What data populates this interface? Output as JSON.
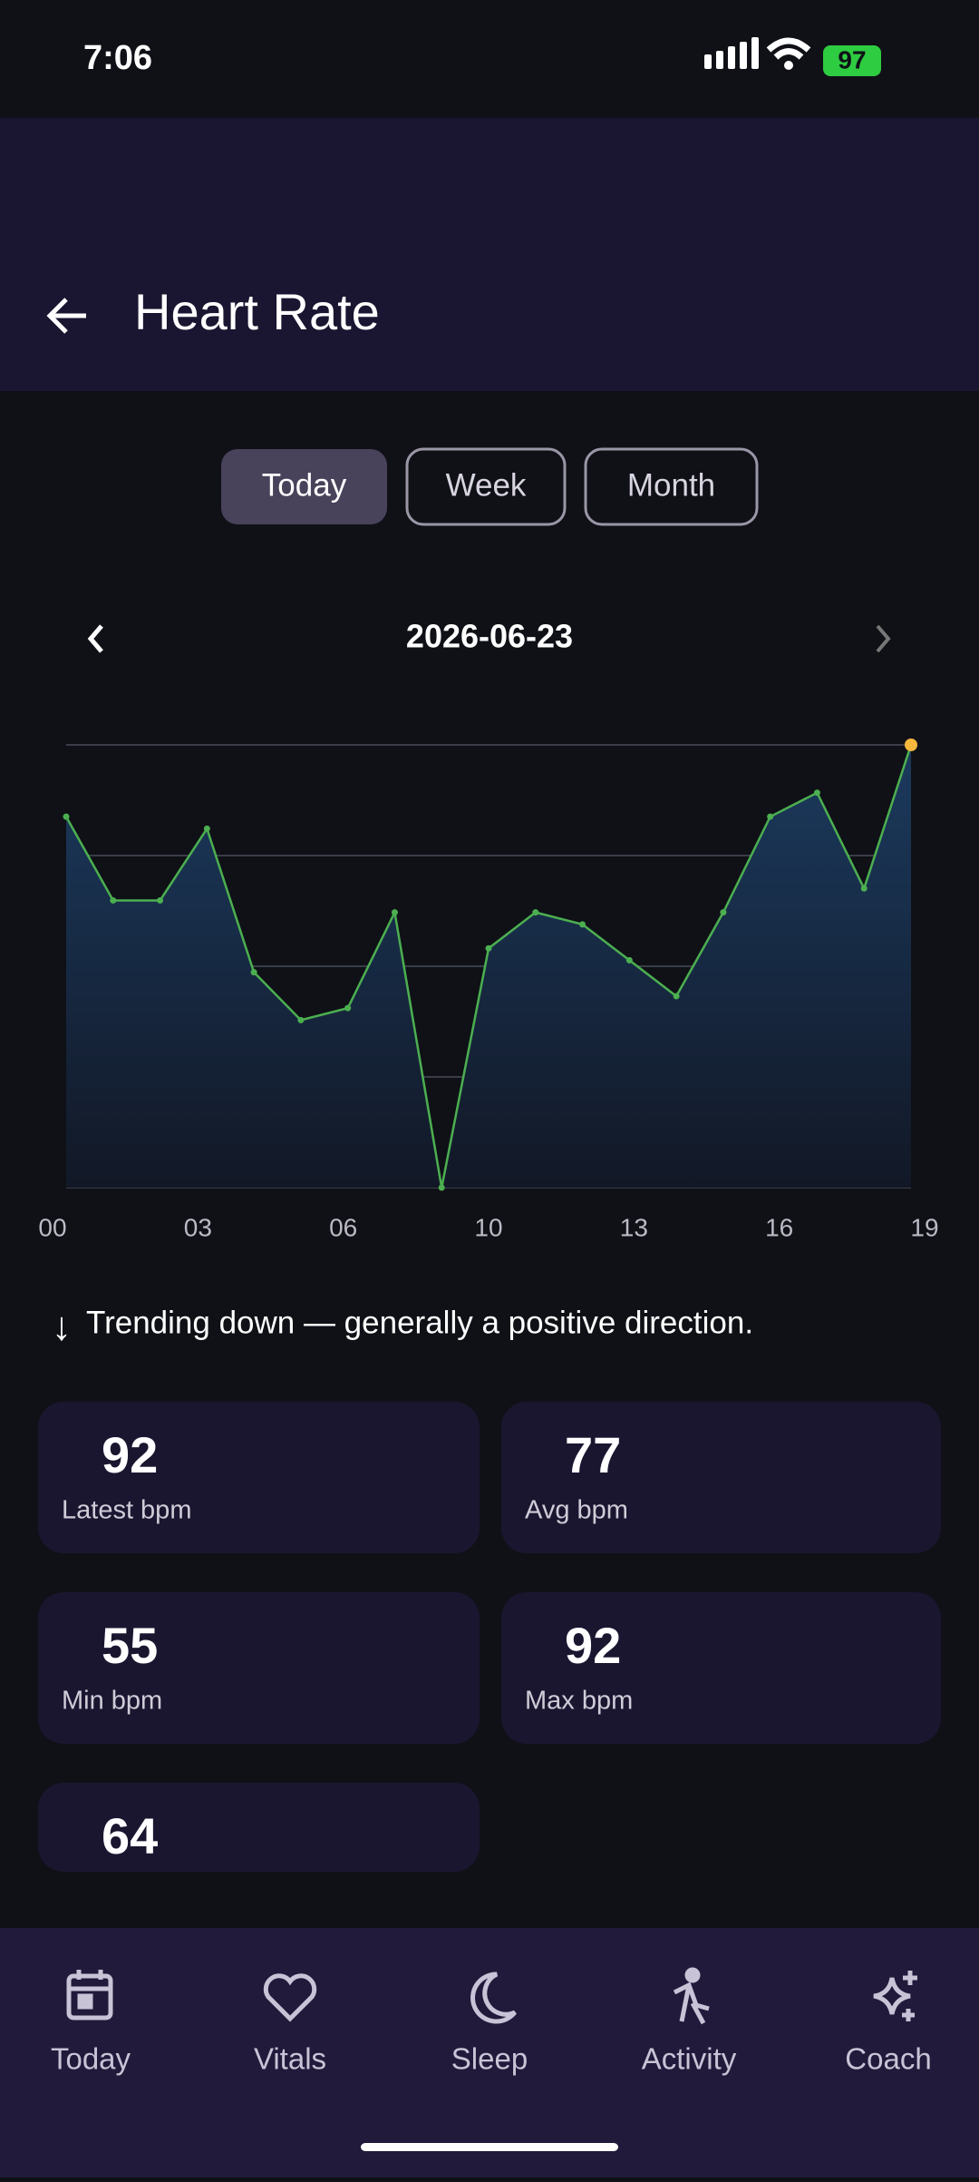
{
  "status_bar": {
    "time": "7:06",
    "battery": "97"
  },
  "header": {
    "title": "Heart Rate"
  },
  "tabs": {
    "items": [
      "Today",
      "Week",
      "Month"
    ],
    "selected": 0
  },
  "date": "2026-06-23",
  "chart_data": {
    "type": "line",
    "x_labels": [
      "00",
      "03",
      "06",
      "10",
      "13",
      "16",
      "19"
    ],
    "values": [
      86,
      79,
      79,
      85,
      73,
      69,
      70,
      78,
      55,
      75,
      78,
      77,
      74,
      71,
      78,
      86,
      88,
      80,
      92
    ],
    "color": "#4caf50",
    "last_point_color": "#f5b83d",
    "ylim": [
      55,
      92
    ],
    "yticks": [
      55,
      64.25,
      73.5,
      82.75,
      92
    ],
    "grid": true
  },
  "trend": {
    "icon": "↓",
    "text": "Trending down — generally a positive direction."
  },
  "stats": [
    {
      "value": 92,
      "label": "Latest bpm"
    },
    {
      "value": 77,
      "label": "Avg bpm"
    },
    {
      "value": 55,
      "label": "Min bpm"
    },
    {
      "value": 92,
      "label": "Max bpm"
    },
    {
      "value": 64
    }
  ],
  "nav": [
    "Today",
    "Vitals",
    "Sleep",
    "Activity",
    "Coach"
  ]
}
